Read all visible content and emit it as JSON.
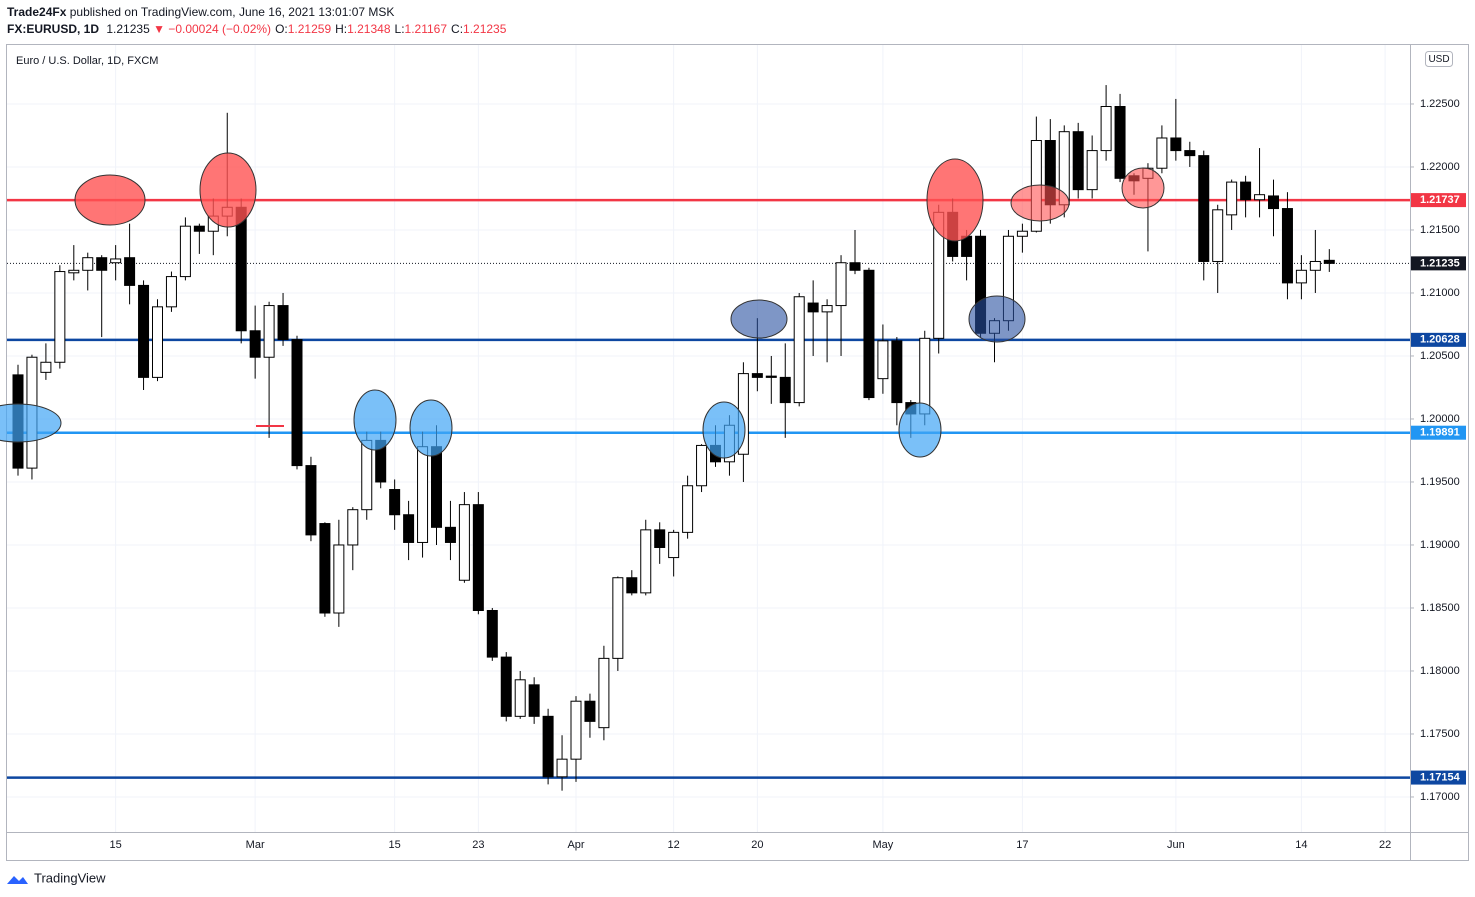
{
  "header": {
    "publisher": "Trade24Fx",
    "published": "published on TradingView.com, June 16, 2021 13:01:07 MSK",
    "symbol": "FX:EURUSD, 1D",
    "price": "1.21235",
    "change": "▼ −0.00024 (−0.02%)",
    "ohlc": [
      {
        "key": "O:",
        "value": "1.21259"
      },
      {
        "key": "H:",
        "value": "1.21348"
      },
      {
        "key": "L:",
        "value": "1.21167"
      },
      {
        "key": "C:",
        "value": "1.21235"
      }
    ]
  },
  "chart_data": {
    "type": "candlestick",
    "title": "Euro / U.S. Dollar, 1D, FXCM",
    "currency": "USD",
    "categories": [
      null,
      null,
      null,
      null,
      null,
      null,
      null,
      "15",
      null,
      null,
      null,
      null,
      null,
      null,
      null,
      null,
      null,
      "Mar",
      null,
      null,
      null,
      null,
      null,
      null,
      null,
      null,
      null,
      "15",
      null,
      null,
      null,
      null,
      null,
      "23",
      null,
      null,
      null,
      null,
      null,
      null,
      "Apr",
      null,
      null,
      null,
      null,
      null,
      null,
      "12",
      null,
      null,
      null,
      null,
      null,
      "20",
      null,
      null,
      null,
      null,
      null,
      null,
      null,
      null,
      "May",
      null,
      null,
      null,
      null,
      null,
      null,
      null,
      null,
      null,
      "17",
      null,
      null,
      null,
      null,
      null,
      null,
      null,
      null,
      null,
      null,
      "Jun",
      null,
      null,
      null,
      null,
      null,
      null,
      null,
      null,
      "14",
      null,
      null,
      null,
      null,
      null,
      "22"
    ],
    "open": [
      1.2035,
      1.1961,
      1.2037,
      1.2045,
      1.2116,
      1.2118,
      1.2128,
      1.2124,
      1.2128,
      1.2106,
      1.2033,
      1.2089,
      1.2113,
      1.2153,
      1.2149,
      1.2161,
      1.2168,
      1.207,
      1.2049,
      1.209,
      1.2063,
      1.1963,
      1.1917,
      1.1846,
      1.19,
      1.1928,
      1.1983,
      1.1944,
      1.1924,
      1.1902,
      1.1978,
      1.1914,
      1.1872,
      1.1932,
      1.1848,
      1.1811,
      1.1764,
      1.1789,
      1.1764,
      1.1716,
      1.173,
      1.1776,
      1.1755,
      1.181,
      1.1874,
      1.1862,
      1.1912,
      1.189,
      1.191,
      1.1947,
      1.1979,
      1.1966,
      1.1972,
      1.2036,
      1.2034,
      1.2033,
      1.2013,
      1.2092,
      1.2085,
      1.209,
      1.2124,
      1.2118,
      1.2032,
      1.2062,
      1.2013,
      1.2004,
      1.2064,
      1.2164,
      1.2145,
      1.2145,
      1.2068,
      1.2078,
      1.2145,
      1.2149,
      1.2221,
      1.217,
      1.2228,
      1.2182,
      1.2213,
      1.2248,
      1.2193,
      1.2191,
      1.2199,
      1.2223,
      1.2213,
      1.2209,
      1.2125,
      1.2162,
      1.2188,
      1.2174,
      1.2177,
      1.2167,
      1.2108,
      1.2118,
      1.21259,
      null,
      null,
      null,
      null
    ],
    "high": [
      1.2043,
      1.2051,
      1.206,
      1.2122,
      1.2138,
      1.2132,
      1.213,
      1.2138,
      1.2155,
      1.211,
      1.2095,
      1.2117,
      1.216,
      1.2155,
      1.2175,
      1.2243,
      1.2175,
      1.209,
      1.2093,
      1.21,
      1.2066,
      1.197,
      1.1918,
      1.192,
      1.193,
      1.199,
      1.199,
      1.1952,
      1.1935,
      1.199,
      1.1995,
      1.1935,
      1.1942,
      1.1942,
      1.185,
      1.1815,
      1.18,
      1.1795,
      1.177,
      1.1749,
      1.178,
      1.1782,
      1.182,
      1.1875,
      1.188,
      1.192,
      1.1918,
      1.1912,
      1.1955,
      1.198,
      1.1995,
      1.2003,
      1.2045,
      1.208,
      1.205,
      1.206,
      1.21,
      1.211,
      1.2095,
      1.213,
      1.215,
      1.212,
      1.2075,
      1.2065,
      1.2015,
      1.207,
      1.217,
      1.2175,
      1.215,
      1.215,
      1.208,
      1.215,
      1.2155,
      1.224,
      1.2238,
      1.2233,
      1.2235,
      1.2225,
      1.2265,
      1.2258,
      1.2195,
      1.2203,
      1.2233,
      1.2254,
      1.222,
      1.2213,
      1.217,
      1.219,
      1.2193,
      1.2215,
      1.219,
      1.218,
      1.213,
      1.215,
      1.21348,
      null,
      null,
      null,
      null
    ],
    "low": [
      1.1955,
      1.1952,
      1.2031,
      1.204,
      1.211,
      1.2102,
      1.2065,
      1.211,
      1.2091,
      1.2023,
      1.203,
      1.2085,
      1.211,
      1.2131,
      1.213,
      1.2145,
      1.206,
      1.2032,
      1.1985,
      1.2058,
      1.196,
      1.1903,
      1.1843,
      1.1835,
      1.188,
      1.192,
      1.1945,
      1.1912,
      1.1888,
      1.189,
      1.19,
      1.1888,
      1.187,
      1.1845,
      1.1808,
      1.176,
      1.1762,
      1.1758,
      1.171,
      1.1705,
      1.1712,
      1.1747,
      1.1745,
      1.18,
      1.186,
      1.186,
      1.1885,
      1.1875,
      1.1905,
      1.1942,
      1.1962,
      1.1955,
      1.195,
      1.2022,
      1.2012,
      1.1985,
      1.201,
      1.205,
      1.2045,
      1.205,
      1.2115,
      1.2015,
      1.202,
      1.1995,
      1.1985,
      1.1995,
      1.2052,
      1.2125,
      1.211,
      1.2065,
      1.2045,
      1.207,
      1.2132,
      1.2148,
      1.2155,
      1.216,
      1.2175,
      1.2175,
      1.2205,
      1.2188,
      1.2178,
      1.2133,
      1.2195,
      1.2205,
      1.22,
      1.211,
      1.21,
      1.215,
      1.216,
      1.216,
      1.2145,
      1.2095,
      1.2095,
      1.21,
      1.21167,
      null,
      null,
      null,
      null
    ],
    "close": [
      1.1961,
      1.2049,
      1.2045,
      1.2117,
      1.2118,
      1.2128,
      1.2118,
      1.2127,
      1.2106,
      1.2033,
      1.2089,
      1.2113,
      1.2153,
      1.2149,
      1.2161,
      1.2168,
      1.207,
      1.2049,
      1.209,
      1.2063,
      1.1963,
      1.1908,
      1.1846,
      1.19,
      1.1928,
      1.1983,
      1.195,
      1.1924,
      1.1902,
      1.1978,
      1.1914,
      1.1902,
      1.1932,
      1.1848,
      1.1811,
      1.1764,
      1.1793,
      1.1764,
      1.1716,
      1.173,
      1.1776,
      1.176,
      1.181,
      1.1874,
      1.1862,
      1.1912,
      1.1898,
      1.191,
      1.1947,
      1.1979,
      1.1966,
      1.1995,
      1.2036,
      1.2033,
      1.2033,
      1.2013,
      1.2097,
      1.2085,
      1.209,
      1.2124,
      1.2118,
      1.2017,
      1.2062,
      1.2013,
      1.2004,
      1.2064,
      1.2164,
      1.2129,
      1.2129,
      1.2068,
      1.2078,
      1.2145,
      1.2149,
      1.2221,
      1.217,
      1.2228,
      1.2182,
      1.2213,
      1.2248,
      1.2191,
      1.2189,
      1.2199,
      1.2223,
      1.2213,
      1.2209,
      1.2125,
      1.2166,
      1.2188,
      1.2174,
      1.2178,
      1.2167,
      1.2108,
      1.2118,
      1.2125,
      1.21235,
      null,
      null,
      null,
      null
    ],
    "up_color": "#ffffff",
    "down_color": "#000000",
    "ylim": [
      1.16722,
      1.22968
    ],
    "yticks": [
      {
        "value": 1.17,
        "label": "1.17000"
      },
      {
        "value": 1.175,
        "label": "1.17500"
      },
      {
        "value": 1.18,
        "label": "1.18000"
      },
      {
        "value": 1.185,
        "label": "1.18500"
      },
      {
        "value": 1.19,
        "label": "1.19000"
      },
      {
        "value": 1.195,
        "label": "1.19500"
      },
      {
        "value": 1.2,
        "label": "1.20000"
      },
      {
        "value": 1.205,
        "label": "1.20500"
      },
      {
        "value": 1.21,
        "label": "1.21000"
      },
      {
        "value": 1.215,
        "label": "1.21500"
      },
      {
        "value": 1.22,
        "label": "1.22000"
      },
      {
        "value": 1.225,
        "label": "1.22500"
      }
    ],
    "hlines": [
      {
        "value": 1.21737,
        "color": "#f23645"
      },
      {
        "value": 1.20628,
        "color": "#0d47a1"
      },
      {
        "value": 1.19891,
        "color": "#2196f3"
      },
      {
        "value": 1.17154,
        "color": "#0d47a1"
      }
    ],
    "last": 1.21235,
    "grid": true
  },
  "footer": {
    "brand": "TradingView"
  }
}
